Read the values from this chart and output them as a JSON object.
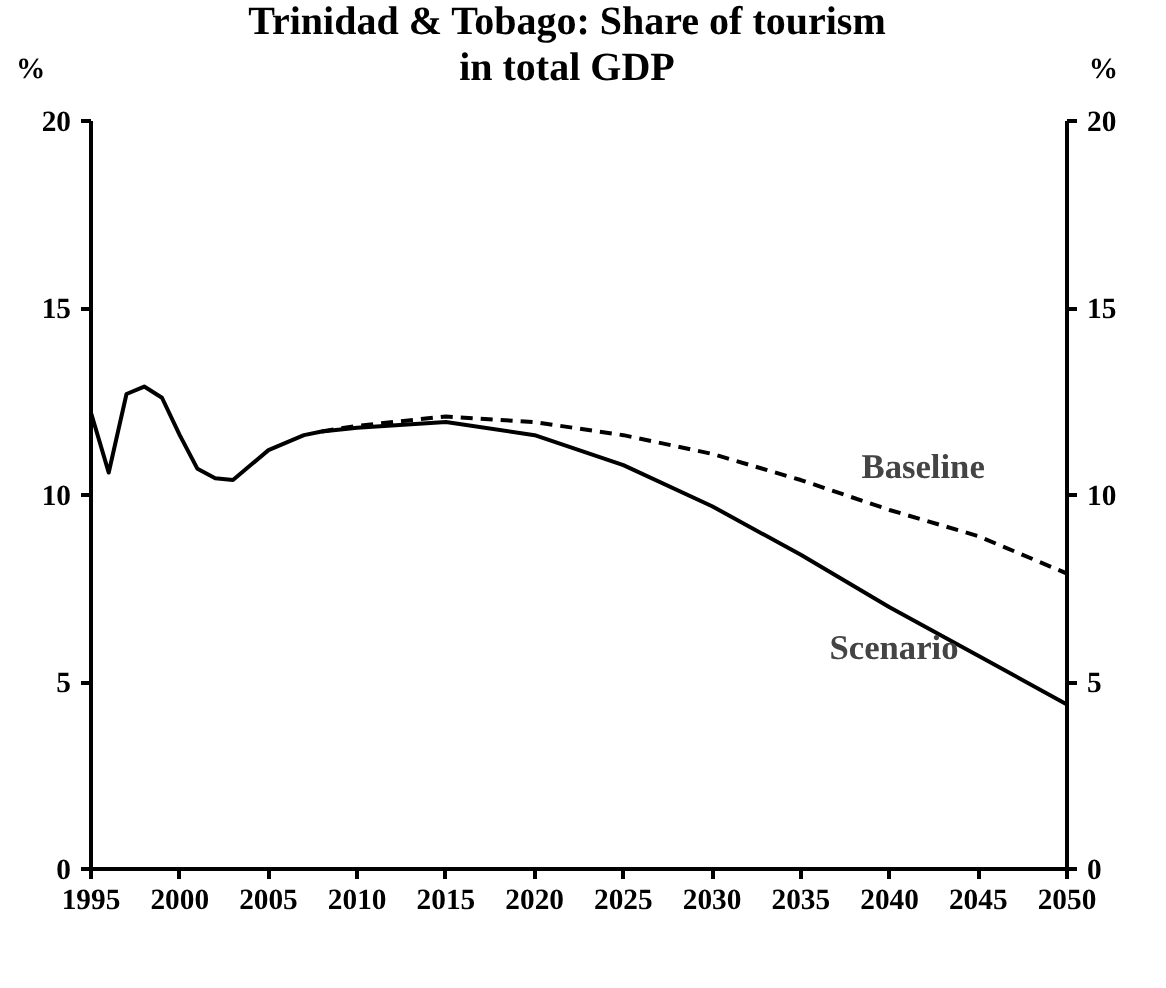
{
  "chart_data": {
    "type": "line",
    "title": "Trinidad & Tobago:  Share of tourism\nin total GDP",
    "ylabel": "%",
    "y2label": "%",
    "xlim": [
      1995,
      2050
    ],
    "xticks": [
      1995,
      2000,
      2005,
      2010,
      2015,
      2020,
      2025,
      2030,
      2035,
      2040,
      2045,
      2050
    ],
    "ylim": [
      0,
      20
    ],
    "yticks": [
      0,
      5,
      10,
      15,
      20
    ],
    "y2lim": [
      0,
      20
    ],
    "y2ticks": [
      0,
      5,
      10,
      15,
      20
    ],
    "grid": false,
    "legend": false,
    "series": [
      {
        "name": "Baseline",
        "color": "#000000",
        "line_style": "dashed",
        "x": [
          2008,
          2010,
          2015,
          2020,
          2025,
          2030,
          2035,
          2040,
          2045,
          2050
        ],
        "values": [
          11.7,
          11.85,
          12.1,
          11.95,
          11.6,
          11.1,
          10.4,
          9.6,
          8.9,
          7.9
        ]
      },
      {
        "name": "Scenario",
        "color": "#000000",
        "line_style": "solid",
        "x": [
          1995,
          1996,
          1997,
          1998,
          1999,
          2000,
          2001,
          2002,
          2003,
          2004,
          2005,
          2006,
          2007,
          2008,
          2010,
          2015,
          2020,
          2025,
          2030,
          2035,
          2040,
          2045,
          2050
        ],
        "values": [
          12.2,
          10.6,
          12.7,
          12.9,
          12.6,
          11.6,
          10.7,
          10.45,
          10.4,
          10.8,
          11.2,
          11.4,
          11.6,
          11.7,
          11.8,
          11.95,
          11.6,
          10.8,
          9.7,
          8.4,
          7.0,
          5.7,
          4.4
        ]
      }
    ]
  }
}
